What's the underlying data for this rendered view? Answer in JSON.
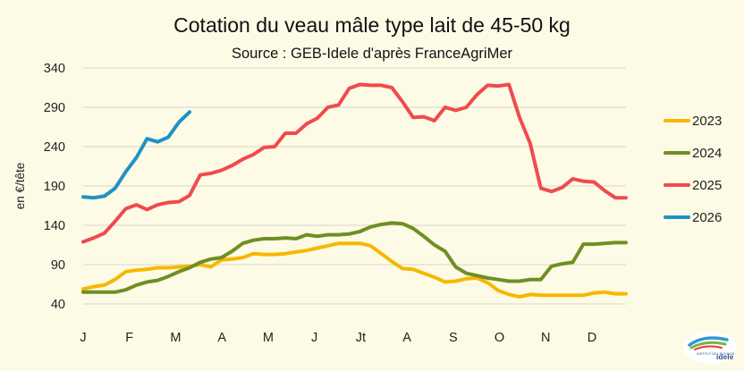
{
  "chart_data": {
    "type": "line",
    "title": "Cotation du veau mâle type lait de 45-50 kg",
    "subtitle": "Source : GEB-Idele d'après FranceAgriMer",
    "ylabel": "en €/tête",
    "xlabel": "",
    "ylim": [
      40,
      340
    ],
    "yticks": [
      40,
      90,
      140,
      190,
      240,
      290,
      340
    ],
    "grid": true,
    "legend_position": "right",
    "month_labels": [
      "J",
      "F",
      "M",
      "A",
      "M",
      "J",
      "Jt",
      "A",
      "S",
      "O",
      "N",
      "D"
    ],
    "weeks": 52,
    "series": [
      {
        "name": "2023",
        "color": "#f6b800",
        "values": [
          59,
          62,
          64,
          71,
          81,
          83,
          84,
          86,
          86,
          87,
          88,
          90,
          87,
          96,
          97,
          99,
          104,
          103,
          103,
          104,
          106,
          108,
          111,
          114,
          117,
          117,
          117,
          114,
          104,
          94,
          85,
          84,
          79,
          74,
          68,
          69,
          72,
          73,
          67,
          57,
          52,
          49,
          52,
          51,
          51,
          51,
          51,
          51,
          54,
          55,
          53,
          53
        ]
      },
      {
        "name": "2024",
        "color": "#6f8f22",
        "values": [
          55,
          55,
          55,
          55,
          58,
          64,
          68,
          70,
          75,
          81,
          86,
          93,
          97,
          99,
          107,
          117,
          121,
          123,
          123,
          124,
          123,
          128,
          126,
          128,
          128,
          129,
          132,
          138,
          141,
          143,
          142,
          136,
          126,
          115,
          107,
          87,
          79,
          76,
          73,
          71,
          69,
          69,
          71,
          71,
          88,
          91,
          93,
          116,
          116,
          117,
          118,
          118
        ]
      },
      {
        "name": "2025",
        "color": "#f04a50",
        "values": [
          119,
          124,
          130,
          145,
          161,
          166,
          160,
          166,
          169,
          170,
          178,
          204,
          206,
          210,
          216,
          224,
          230,
          239,
          240,
          257,
          257,
          269,
          276,
          290,
          293,
          314,
          319,
          318,
          318,
          315,
          297,
          277,
          278,
          273,
          290,
          286,
          290,
          306,
          318,
          317,
          319,
          277,
          244,
          187,
          183,
          188,
          199,
          196,
          195,
          184,
          175,
          175
        ]
      },
      {
        "name": "2026",
        "color": "#1f92c4",
        "values": [
          176,
          175,
          177,
          187,
          208,
          226,
          250,
          246,
          252,
          271,
          284
        ]
      }
    ]
  },
  "logo": {
    "text_small": "INSTITUT DE L'ÉLEVAGE",
    "text_brand": "idele"
  }
}
